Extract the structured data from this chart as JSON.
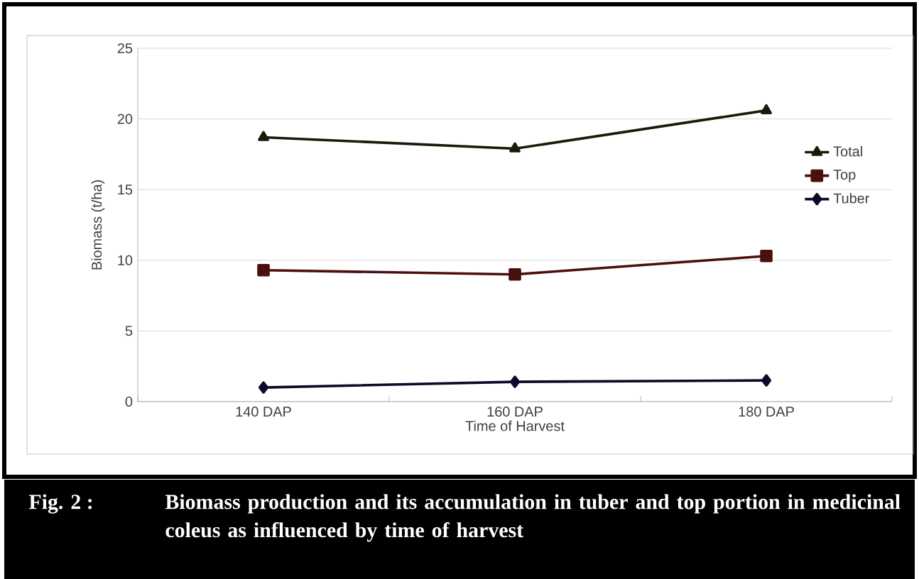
{
  "chart_data": {
    "type": "line",
    "xlabel": "Time of Harvest",
    "ylabel": "Biomass (t/ha)",
    "categories": [
      "140 DAP",
      "160 DAP",
      "180 DAP"
    ],
    "series": [
      {
        "name": "Total",
        "color": "#1a1a0a",
        "marker": "triangle",
        "values": [
          18.7,
          17.9,
          20.6
        ]
      },
      {
        "name": "Top",
        "color": "#4a0f0f",
        "marker": "square",
        "values": [
          9.3,
          9.0,
          10.3
        ]
      },
      {
        "name": "Tuber",
        "color": "#0a0a2a",
        "marker": "diamond",
        "values": [
          1.0,
          1.4,
          1.5
        ]
      }
    ],
    "ylim": [
      0,
      25
    ],
    "yticks": [
      0,
      5,
      10,
      15,
      20,
      25
    ],
    "grid": "y",
    "legend": "right",
    "line_style": "solid",
    "annotations": [
      "Fig. 2 :",
      "Biomass production and its accumulation in tuber and top portion in medicinal coleus as influenced by time of harvest"
    ]
  }
}
